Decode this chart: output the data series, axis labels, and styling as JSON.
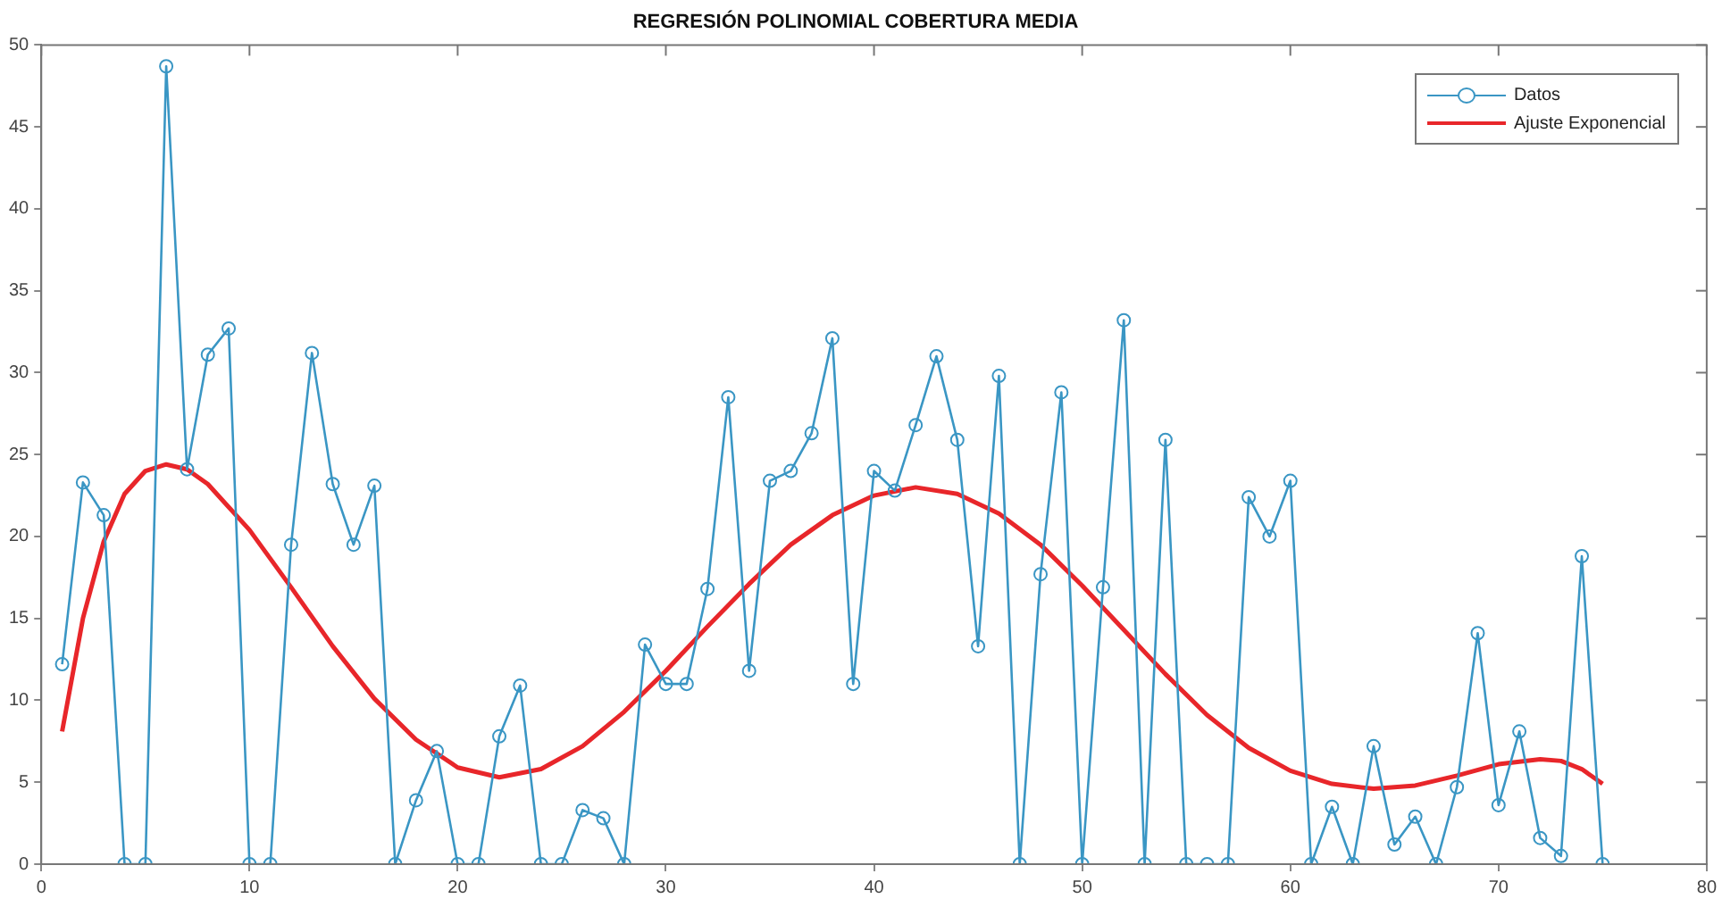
{
  "chart_data": {
    "type": "line",
    "title": "REGRESIÓN POLINOMIAL COBERTURA MEDIA",
    "x": [
      1,
      2,
      3,
      4,
      5,
      6,
      7,
      8,
      9,
      10,
      11,
      12,
      13,
      14,
      15,
      16,
      17,
      18,
      19,
      20,
      21,
      22,
      23,
      24,
      25,
      26,
      27,
      28,
      29,
      30,
      31,
      32,
      33,
      34,
      35,
      36,
      37,
      38,
      39,
      40,
      41,
      42,
      43,
      44,
      45,
      46,
      47,
      48,
      49,
      50,
      51,
      52,
      53,
      54,
      55,
      56,
      57,
      58,
      59,
      60,
      61,
      62,
      63,
      64,
      65,
      66,
      67,
      68,
      69,
      70,
      71,
      72,
      73,
      74,
      75
    ],
    "series": [
      {
        "name": "Datos",
        "color": "#3a96c4",
        "marker": "circle",
        "values": [
          12.2,
          23.3,
          21.3,
          0,
          0,
          48.7,
          24.1,
          31.1,
          32.7,
          0,
          0,
          19.5,
          31.2,
          23.2,
          19.5,
          23.1,
          0,
          3.9,
          6.9,
          0,
          0,
          7.8,
          10.9,
          0,
          0,
          3.3,
          2.8,
          0,
          13.4,
          11,
          11,
          16.8,
          28.5,
          11.8,
          23.4,
          24,
          26.3,
          32.1,
          11,
          24,
          22.8,
          26.8,
          31,
          25.9,
          13.3,
          29.8,
          0,
          17.7,
          28.8,
          0,
          16.9,
          33.2,
          0,
          25.9,
          0,
          0,
          0,
          22.4,
          20,
          23.4,
          0,
          3.5,
          0,
          7.2,
          1.2,
          2.9,
          0,
          4.7,
          14.1,
          3.6,
          8.1,
          1.6,
          0.5,
          18.8,
          0
        ]
      },
      {
        "name": "Ajuste Exponencial",
        "color": "#e8262a",
        "marker": "none",
        "x": [
          1,
          2,
          3,
          4,
          5,
          6,
          7,
          8,
          10,
          12,
          14,
          16,
          18,
          20,
          22,
          24,
          26,
          28,
          30,
          32,
          34,
          36,
          38,
          40,
          42,
          44,
          46,
          48,
          50,
          52,
          54,
          56,
          58,
          60,
          62,
          64,
          66,
          68,
          70,
          72,
          73,
          74,
          75
        ],
        "values": [
          8.1,
          15,
          19.7,
          22.6,
          24,
          24.4,
          24.1,
          23.2,
          20.4,
          16.9,
          13.3,
          10.1,
          7.6,
          5.9,
          5.3,
          5.8,
          7.2,
          9.3,
          11.8,
          14.5,
          17.1,
          19.5,
          21.3,
          22.5,
          23,
          22.6,
          21.4,
          19.5,
          17,
          14.3,
          11.6,
          9.1,
          7.1,
          5.7,
          4.9,
          4.6,
          4.8,
          5.4,
          6.1,
          6.4,
          6.3,
          5.8,
          4.9
        ]
      }
    ],
    "xlim": [
      0,
      80
    ],
    "xticks": [
      0,
      10,
      20,
      30,
      40,
      50,
      60,
      70,
      80
    ],
    "ylim": [
      0,
      50
    ],
    "yticks": [
      0,
      5,
      10,
      15,
      20,
      25,
      30,
      35,
      40,
      45,
      50
    ],
    "grid": false,
    "legend": "top right",
    "line_style": "solid"
  }
}
